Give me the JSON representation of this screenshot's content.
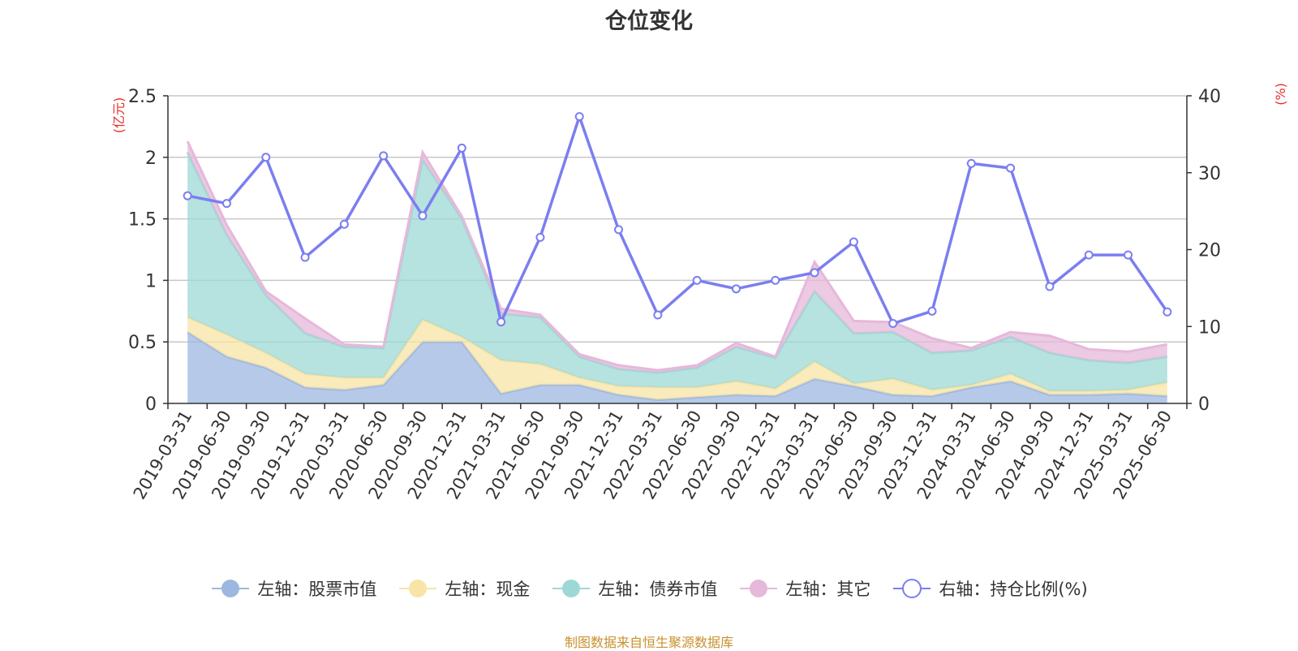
{
  "title": "仓位变化",
  "source_note": "制图数据来自恒生聚源数据库",
  "chart_data": {
    "type": "area",
    "title": "仓位变化",
    "categories": [
      "2019-03-31",
      "2019-06-30",
      "2019-09-30",
      "2019-12-31",
      "2020-03-31",
      "2020-06-30",
      "2020-09-30",
      "2020-12-31",
      "2021-03-31",
      "2021-06-30",
      "2021-09-30",
      "2021-12-31",
      "2022-03-31",
      "2022-06-30",
      "2022-09-30",
      "2022-12-31",
      "2023-03-31",
      "2023-06-30",
      "2023-09-30",
      "2023-12-31",
      "2024-03-31",
      "2024-06-30",
      "2024-09-30",
      "2024-12-31",
      "2025-03-31",
      "2025-06-30"
    ],
    "left_axis": {
      "unit_label": "(亿元)",
      "range": [
        0,
        2.5
      ],
      "ticks": [
        "0",
        "0.5",
        "1",
        "1.5",
        "2",
        "2.5"
      ]
    },
    "right_axis": {
      "unit_label": "(%)",
      "range": [
        0,
        40
      ],
      "ticks": [
        "0",
        "10",
        "20",
        "30",
        "40"
      ]
    },
    "grid": true,
    "legend_position": "bottom",
    "stacked_series": [
      {
        "name": "左轴：股票市值",
        "color": "#9db7e0",
        "values": [
          0.58,
          0.38,
          0.29,
          0.13,
          0.11,
          0.15,
          0.5,
          0.5,
          0.08,
          0.15,
          0.15,
          0.07,
          0.03,
          0.05,
          0.07,
          0.06,
          0.2,
          0.14,
          0.07,
          0.06,
          0.13,
          0.18,
          0.07,
          0.07,
          0.08,
          0.06
        ]
      },
      {
        "name": "左轴：现金",
        "color": "#f7e4a6",
        "values": [
          0.12,
          0.18,
          0.12,
          0.11,
          0.1,
          0.06,
          0.18,
          0.04,
          0.27,
          0.17,
          0.06,
          0.07,
          0.1,
          0.08,
          0.11,
          0.06,
          0.14,
          0.02,
          0.13,
          0.05,
          0.02,
          0.06,
          0.03,
          0.03,
          0.03,
          0.11
        ]
      },
      {
        "name": "左轴：债券市值",
        "color": "#9ed8d6",
        "values": [
          1.34,
          0.81,
          0.47,
          0.33,
          0.25,
          0.24,
          1.3,
          0.96,
          0.38,
          0.38,
          0.17,
          0.14,
          0.12,
          0.16,
          0.28,
          0.25,
          0.57,
          0.41,
          0.38,
          0.3,
          0.28,
          0.3,
          0.31,
          0.25,
          0.22,
          0.21
        ]
      },
      {
        "name": "左轴：其它",
        "color": "#e6b8da",
        "values": [
          0.09,
          0.08,
          0.03,
          0.12,
          0.02,
          0.01,
          0.06,
          0.02,
          0.04,
          0.02,
          0.02,
          0.03,
          0.02,
          0.02,
          0.03,
          0.01,
          0.24,
          0.1,
          0.08,
          0.12,
          0.02,
          0.04,
          0.14,
          0.09,
          0.09,
          0.1
        ]
      }
    ],
    "line_series": {
      "name": "右轴：持仓比例(%)",
      "color": "#7b7ef0",
      "values": [
        27.0,
        26.0,
        32.0,
        19.0,
        23.3,
        32.2,
        24.4,
        33.2,
        10.6,
        21.6,
        37.3,
        22.6,
        11.5,
        16.0,
        14.9,
        16.0,
        17.0,
        21.0,
        10.4,
        12.0,
        31.2,
        30.6,
        15.2,
        19.3,
        19.3,
        11.9
      ]
    }
  }
}
